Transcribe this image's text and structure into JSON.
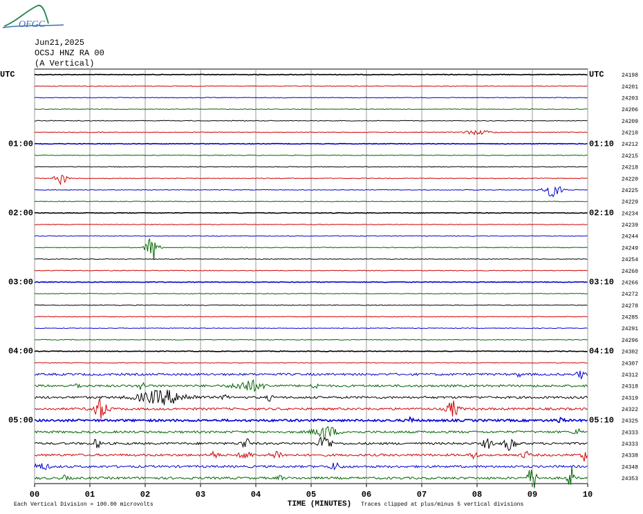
{
  "header": {
    "logo": "OFGC",
    "date": "Jun21,2025",
    "station": "OCSJ HNZ RA 00",
    "component": "(A Vertical)"
  },
  "rows": [
    {
      "left": "UTC",
      "right": "UTC",
      "count": "24198"
    },
    {
      "left": null,
      "right": null,
      "count": "24201"
    },
    {
      "left": null,
      "right": null,
      "count": "24203"
    },
    {
      "left": null,
      "right": null,
      "count": "24206"
    },
    {
      "left": null,
      "right": null,
      "count": "24209"
    },
    {
      "left": null,
      "right": null,
      "count": "24210"
    },
    {
      "left": "01:00",
      "right": "01:10",
      "count": "24212"
    },
    {
      "left": null,
      "right": null,
      "count": "24215"
    },
    {
      "left": null,
      "right": null,
      "count": "24218"
    },
    {
      "left": null,
      "right": null,
      "count": "24220"
    },
    {
      "left": null,
      "right": null,
      "count": "24225"
    },
    {
      "left": null,
      "right": null,
      "count": "24229"
    },
    {
      "left": "02:00",
      "right": "02:10",
      "count": "24234"
    },
    {
      "left": null,
      "right": null,
      "count": "24239"
    },
    {
      "left": null,
      "right": null,
      "count": "24244"
    },
    {
      "left": null,
      "right": null,
      "count": "24249"
    },
    {
      "left": null,
      "right": null,
      "count": "24254"
    },
    {
      "left": null,
      "right": null,
      "count": "24260"
    },
    {
      "left": "03:00",
      "right": "03:10",
      "count": "24266"
    },
    {
      "left": null,
      "right": null,
      "count": "24272"
    },
    {
      "left": null,
      "right": null,
      "count": "24278"
    },
    {
      "left": null,
      "right": null,
      "count": "24285"
    },
    {
      "left": null,
      "right": null,
      "count": "24291"
    },
    {
      "left": null,
      "right": null,
      "count": "24296"
    },
    {
      "left": "04:00",
      "right": "04:10",
      "count": "24302"
    },
    {
      "left": null,
      "right": null,
      "count": "24307"
    },
    {
      "left": null,
      "right": null,
      "count": "24312"
    },
    {
      "left": null,
      "right": null,
      "count": "24318"
    },
    {
      "left": null,
      "right": null,
      "count": "24319"
    },
    {
      "left": null,
      "right": null,
      "count": "24322"
    },
    {
      "left": "05:00",
      "right": "05:10",
      "count": "24325"
    },
    {
      "left": null,
      "right": null,
      "count": "24333"
    },
    {
      "left": null,
      "right": null,
      "count": "24333"
    },
    {
      "left": null,
      "right": null,
      "count": "24338"
    },
    {
      "left": null,
      "right": null,
      "count": "24348"
    },
    {
      "left": null,
      "right": null,
      "count": "24353"
    }
  ],
  "x_ticks": [
    "00",
    "01",
    "02",
    "03",
    "04",
    "05",
    "06",
    "07",
    "08",
    "09",
    "10"
  ],
  "x_axis_title": "TIME (MINUTES)",
  "footer": {
    "scale_note": "Each Vertical Division =  100.00 microvolts",
    "clip_note": "Traces clipped at plus/minus 5 vertical divisions"
  }
}
